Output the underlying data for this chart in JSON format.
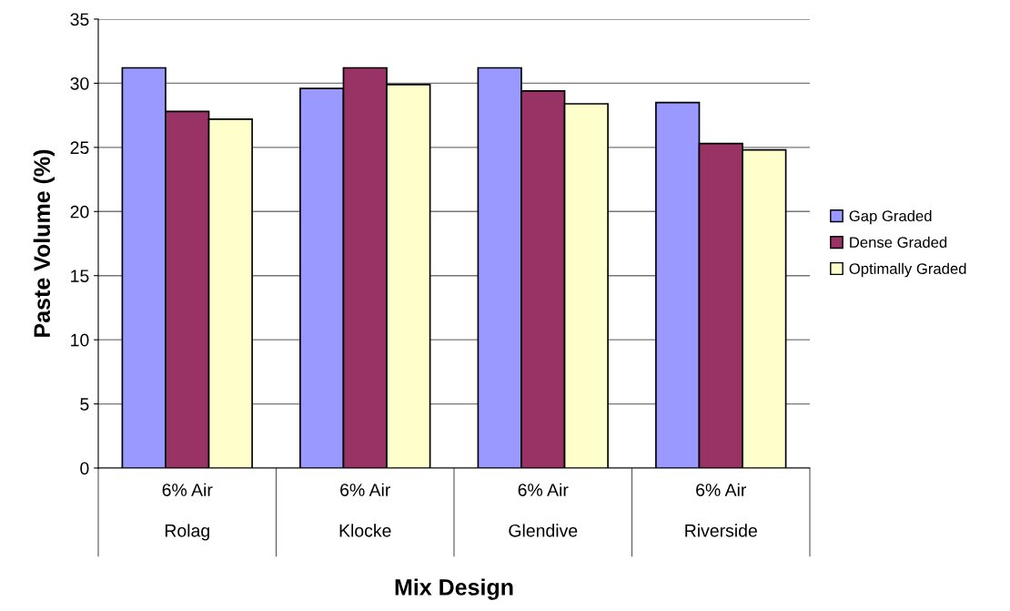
{
  "chart_data": {
    "type": "bar",
    "xlabel": "Mix Design",
    "ylabel": "Paste Volume (%)",
    "categories": [
      "6% Air\n\nRolag",
      "6% Air\n\nKlocke",
      "6% Air\n\nGlendive",
      "6% Air\n\nRiverside"
    ],
    "series": [
      {
        "name": "Gap Graded",
        "color": "#9999ff",
        "values": [
          31.2,
          29.6,
          31.2,
          28.5
        ]
      },
      {
        "name": "Dense Graded",
        "color": "#993366",
        "values": [
          27.8,
          31.2,
          29.4,
          25.3
        ]
      },
      {
        "name": "Optimally Graded",
        "color": "#ffffcc",
        "values": [
          27.2,
          29.9,
          28.4,
          24.8
        ]
      }
    ],
    "ylim": [
      0,
      35
    ],
    "yticks": [
      0,
      5,
      10,
      15,
      20,
      25,
      30,
      35
    ],
    "grid": "y",
    "legend": "right"
  }
}
